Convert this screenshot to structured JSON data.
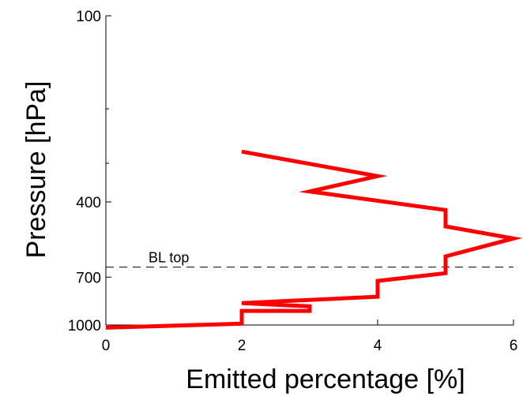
{
  "chart_data": {
    "type": "line",
    "title": "",
    "xlabel": "Emitted percentage [%]",
    "ylabel": "Pressure [hPa]",
    "xlim": [
      0,
      6
    ],
    "ylim": [
      100,
      1000
    ],
    "y_scale": "log",
    "y_inverted": true,
    "grid": false,
    "x_ticks": [
      0,
      2,
      4,
      6
    ],
    "x_tick_labels": [
      "0",
      "2",
      "4",
      "6"
    ],
    "y_ticks": [
      100,
      400,
      700,
      1000
    ],
    "y_tick_labels": [
      "100",
      "400",
      "700",
      "1000"
    ],
    "y_minor_ticks": [
      200,
      300
    ],
    "series": [
      {
        "color": "#ff0000",
        "x": [
          2.0,
          4.0,
          3.0,
          5.0,
          5.0,
          6.0,
          5.0,
          5.0,
          4.0,
          4.0,
          2.0,
          3.0,
          3.0,
          2.0,
          2.0,
          0.0
        ],
        "y": [
          275,
          330,
          370,
          425,
          480,
          525,
          600,
          680,
          720,
          810,
          850,
          870,
          900,
          900,
          990,
          1020
        ]
      }
    ],
    "reference_lines": [
      {
        "orientation": "horizontal",
        "y": 650,
        "style": "dashed",
        "color": "#000000",
        "label": "BL top"
      }
    ]
  }
}
